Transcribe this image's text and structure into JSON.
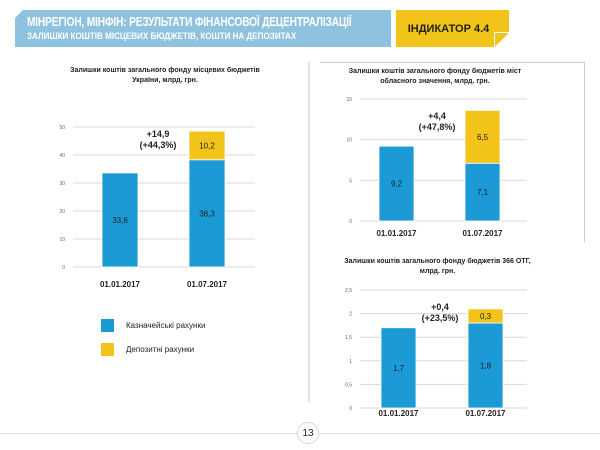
{
  "header": {
    "title": "МІНРЕГІОН, МІНФІН: РЕЗУЛЬТАТИ ФІНАНСОВОЇ ДЕЦЕНТРАЛІЗАЦІЇ",
    "subtitle": "ЗАЛИШКИ  КОШТІВ МІСЦЕВИХ  БЮДЖЕТІВ, КОШТИ  НА ДЕПОЗИТАХ",
    "indicator": "ІНДИКАТОР  4.4"
  },
  "legend": [
    {
      "label": "Казначейські рахунки",
      "color": "#1b9ad6"
    },
    {
      "label": "Депозитні рахунки",
      "color": "#f2c318"
    }
  ],
  "page_number": "13",
  "chart_data": [
    {
      "type": "bar",
      "stacked": true,
      "title": "Залишки  коштів загального  фонду місцевих бюджетів України,  млрд.  грн.",
      "categories": [
        "01.01.2017",
        "01.07.2017"
      ],
      "series": [
        {
          "name": "Казначейські рахунки",
          "values": [
            33.6,
            38.3
          ],
          "labels": [
            "33,6",
            "38,3"
          ]
        },
        {
          "name": "Депозитні рахунки",
          "values": [
            0,
            10.2
          ],
          "labels": [
            "",
            "10,2"
          ]
        }
      ],
      "ylim": [
        0,
        50
      ],
      "yticks": [
        "0",
        "10",
        "20",
        "30",
        "40",
        "50"
      ],
      "annotation": [
        "+14,9",
        "(+44,3%)"
      ]
    },
    {
      "type": "bar",
      "stacked": true,
      "title": "Залишки  коштів загального  фонду бюджетів міст обласного значення, млрд. грн.",
      "categories": [
        "01.01.2017",
        "01.07.2017"
      ],
      "series": [
        {
          "name": "Казначейські рахунки",
          "values": [
            9.2,
            7.1
          ],
          "labels": [
            "9,2",
            "7,1"
          ]
        },
        {
          "name": "Депозитні рахунки",
          "values": [
            0,
            6.5
          ],
          "labels": [
            "",
            "6,5"
          ]
        }
      ],
      "ylim": [
        0,
        15
      ],
      "yticks": [
        "0",
        "5",
        "10",
        "15"
      ],
      "annotation": [
        "+4,4",
        "(+47,8%)"
      ]
    },
    {
      "type": "bar",
      "stacked": true,
      "title": "Залишки  коштів загального  фонду бюджетів 366 ОТГ,  млрд. грн.",
      "categories": [
        "01.01.2017",
        "01.07.2017"
      ],
      "series": [
        {
          "name": "Казначейські рахунки",
          "values": [
            1.7,
            1.8
          ],
          "labels": [
            "1,7",
            "1,8"
          ]
        },
        {
          "name": "Депозитні рахунки",
          "values": [
            0,
            0.3
          ],
          "labels": [
            "",
            "0,3"
          ]
        }
      ],
      "ylim": [
        0,
        2.5
      ],
      "yticks": [
        "0",
        "0,5",
        "1",
        "1,5",
        "2",
        "2,5"
      ],
      "annotation": [
        "+0,4",
        "(+23,5%)"
      ]
    }
  ]
}
